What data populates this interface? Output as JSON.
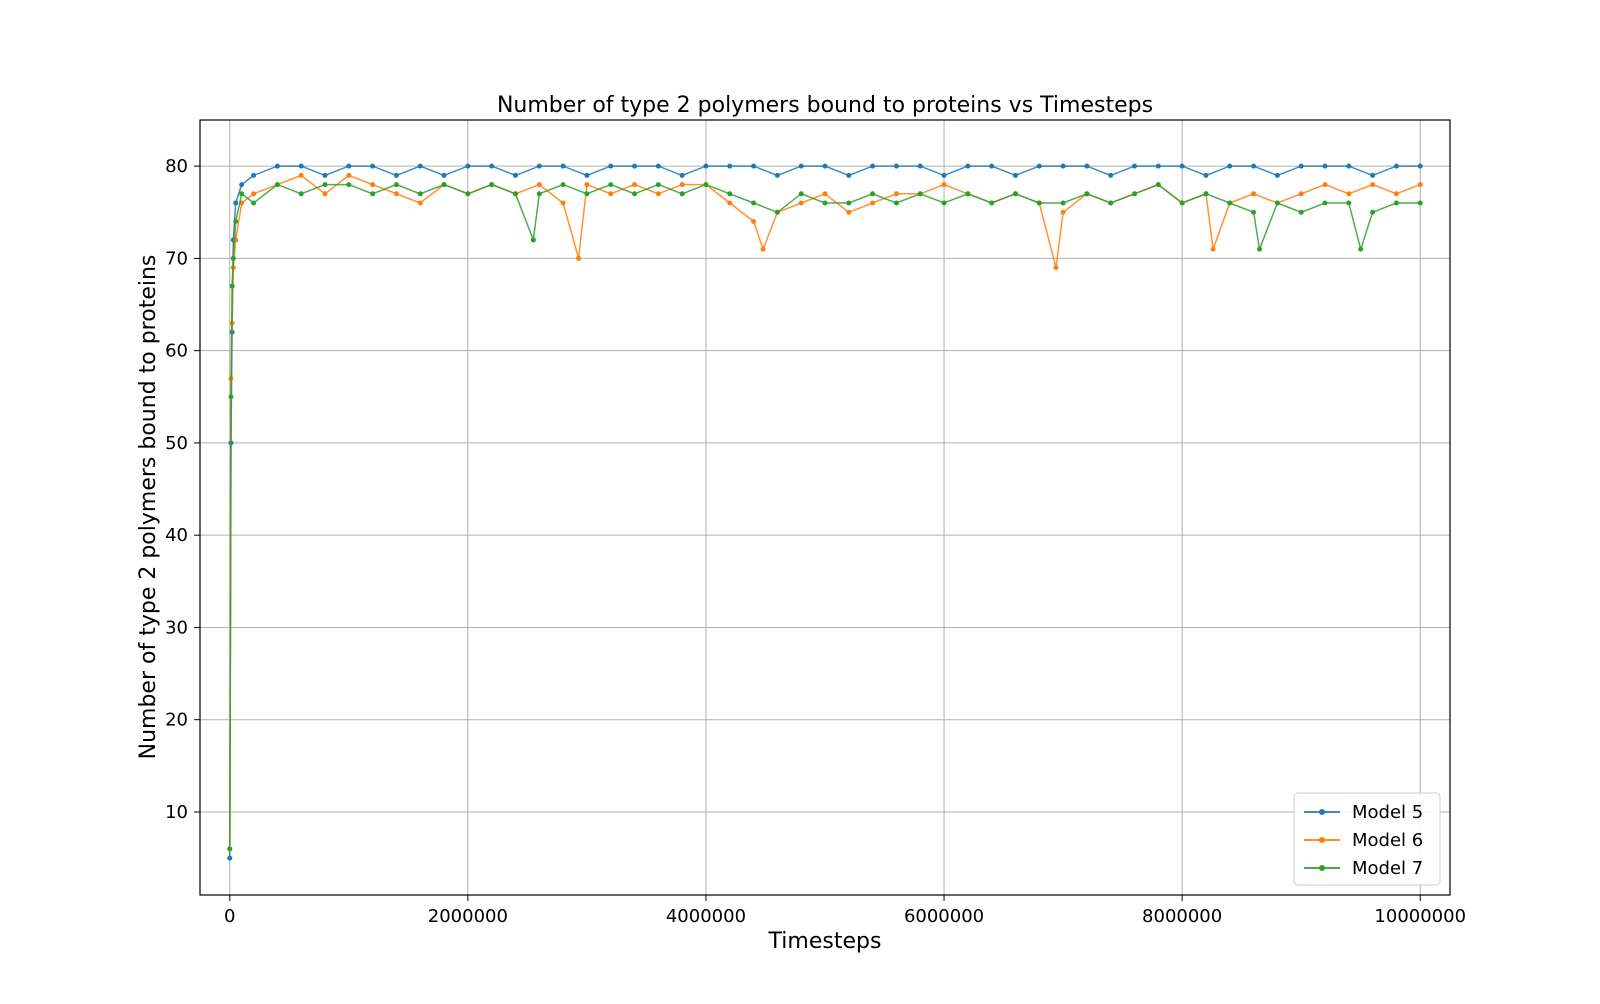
{
  "chart_data": {
    "type": "line",
    "title": "Number of type 2 polymers bound to proteins vs Timesteps",
    "xlabel": "Timesteps",
    "ylabel": "Number of type 2 polymers bound to proteins",
    "xlim": [
      -250000,
      10250000
    ],
    "ylim": [
      1,
      85
    ],
    "xticks": [
      0,
      2000000,
      4000000,
      6000000,
      8000000,
      10000000
    ],
    "xtick_labels": [
      "0",
      "2000000",
      "4000000",
      "6000000",
      "8000000",
      "10000000"
    ],
    "yticks": [
      10,
      20,
      30,
      40,
      50,
      60,
      70,
      80
    ],
    "ytick_labels": [
      "10",
      "20",
      "30",
      "40",
      "50",
      "60",
      "70",
      "80"
    ],
    "grid": true,
    "legend_position": "bottom-right",
    "series": [
      {
        "name": "Model 5",
        "color": "#1f77b4",
        "x": [
          0,
          10000,
          20000,
          30000,
          50000,
          100000,
          200000,
          400000,
          600000,
          800000,
          1000000,
          1200000,
          1400000,
          1600000,
          1800000,
          2000000,
          2200000,
          2400000,
          2600000,
          2800000,
          3000000,
          3200000,
          3400000,
          3600000,
          3800000,
          4000000,
          4200000,
          4400000,
          4600000,
          4800000,
          5000000,
          5200000,
          5400000,
          5600000,
          5800000,
          6000000,
          6200000,
          6400000,
          6600000,
          6800000,
          7000000,
          7200000,
          7400000,
          7600000,
          7800000,
          8000000,
          8200000,
          8400000,
          8600000,
          8800000,
          9000000,
          9200000,
          9400000,
          9600000,
          9800000,
          10000000
        ],
        "y": [
          5,
          50,
          62,
          72,
          76,
          78,
          79,
          80,
          80,
          79,
          80,
          80,
          79,
          80,
          79,
          80,
          80,
          79,
          80,
          80,
          79,
          80,
          80,
          80,
          79,
          80,
          80,
          80,
          79,
          80,
          80,
          79,
          80,
          80,
          80,
          79,
          80,
          80,
          79,
          80,
          80,
          80,
          79,
          80,
          80,
          80,
          79,
          80,
          80,
          79,
          80,
          80,
          80,
          79,
          80,
          80
        ]
      },
      {
        "name": "Model 6",
        "color": "#ff7f0e",
        "x": [
          0,
          10000,
          20000,
          30000,
          50000,
          100000,
          200000,
          400000,
          600000,
          800000,
          1000000,
          1200000,
          1400000,
          1600000,
          1800000,
          2000000,
          2200000,
          2400000,
          2600000,
          2800000,
          2930000,
          3000000,
          3200000,
          3400000,
          3600000,
          3800000,
          4000000,
          4200000,
          4400000,
          4480000,
          4600000,
          4800000,
          5000000,
          5200000,
          5400000,
          5600000,
          5800000,
          6000000,
          6200000,
          6400000,
          6600000,
          6800000,
          6940000,
          7000000,
          7200000,
          7400000,
          7600000,
          7800000,
          8000000,
          8200000,
          8260000,
          8400000,
          8600000,
          8800000,
          9000000,
          9200000,
          9400000,
          9600000,
          9800000,
          10000000
        ],
        "y": [
          6,
          57,
          63,
          69,
          72,
          76,
          77,
          78,
          79,
          77,
          79,
          78,
          77,
          76,
          78,
          77,
          78,
          77,
          78,
          76,
          70,
          78,
          77,
          78,
          77,
          78,
          78,
          76,
          74,
          71,
          75,
          76,
          77,
          75,
          76,
          77,
          77,
          78,
          77,
          76,
          77,
          76,
          69,
          75,
          77,
          76,
          77,
          78,
          76,
          77,
          71,
          76,
          77,
          76,
          77,
          78,
          77,
          78,
          77,
          78
        ]
      },
      {
        "name": "Model 7",
        "color": "#2ca02c",
        "x": [
          0,
          10000,
          20000,
          30000,
          50000,
          100000,
          200000,
          400000,
          600000,
          800000,
          1000000,
          1200000,
          1400000,
          1600000,
          1800000,
          2000000,
          2200000,
          2400000,
          2550000,
          2600000,
          2800000,
          3000000,
          3200000,
          3400000,
          3600000,
          3800000,
          4000000,
          4200000,
          4400000,
          4600000,
          4800000,
          5000000,
          5200000,
          5400000,
          5600000,
          5800000,
          6000000,
          6200000,
          6400000,
          6600000,
          6800000,
          7000000,
          7200000,
          7400000,
          7600000,
          7800000,
          8000000,
          8200000,
          8400000,
          8600000,
          8650000,
          8800000,
          9000000,
          9200000,
          9400000,
          9500000,
          9600000,
          9800000,
          10000000
        ],
        "y": [
          6,
          55,
          67,
          70,
          74,
          77,
          76,
          78,
          77,
          78,
          78,
          77,
          78,
          77,
          78,
          77,
          78,
          77,
          72,
          77,
          78,
          77,
          78,
          77,
          78,
          77,
          78,
          77,
          76,
          75,
          77,
          76,
          76,
          77,
          76,
          77,
          76,
          77,
          76,
          77,
          76,
          76,
          77,
          76,
          77,
          78,
          76,
          77,
          76,
          75,
          71,
          76,
          75,
          76,
          76,
          71,
          75,
          76,
          76
        ]
      }
    ]
  }
}
